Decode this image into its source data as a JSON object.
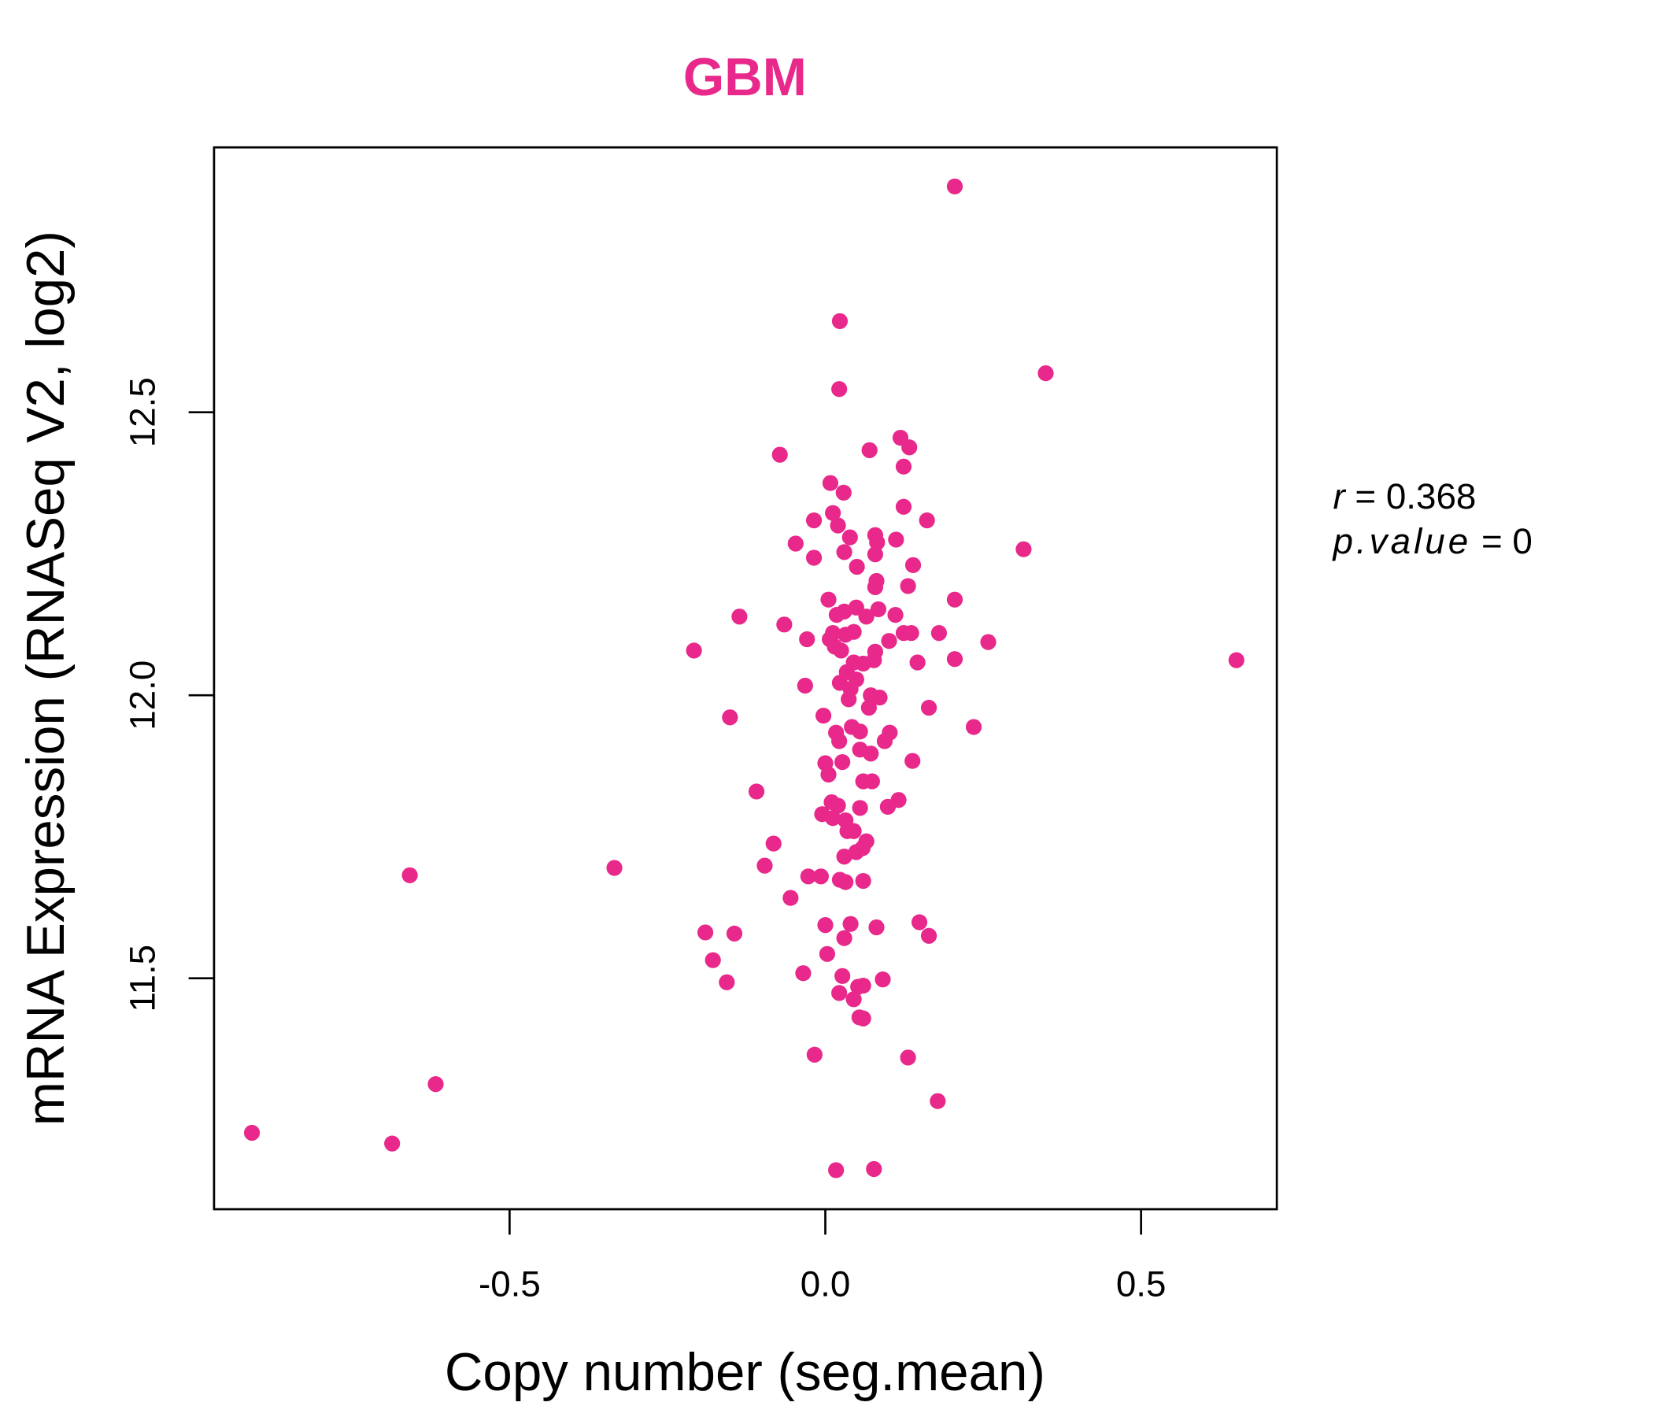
{
  "chart_data": {
    "type": "scatter",
    "title": "GBM",
    "xlabel": "Copy number (seg.mean)",
    "ylabel": "mRNA Expression (RNASeq V2, log2)",
    "xlim": [
      -0.968,
      0.715
    ],
    "ylim": [
      11.092,
      12.968
    ],
    "xticks": [
      -0.5,
      0.0,
      0.5
    ],
    "xtick_labels": [
      "-0.5",
      "0.0",
      "0.5"
    ],
    "yticks": [
      11.5,
      12.0,
      12.5
    ],
    "ytick_labels": [
      "11.5",
      "12.0",
      "12.5"
    ],
    "grid": false,
    "point_color": "#E8288A",
    "title_color": "#E8288A",
    "annotation": {
      "r_label": "r",
      "r_value": "0.368",
      "p_label": "p.value",
      "p_value": "0"
    },
    "points": [
      [
        0.205,
        12.899
      ],
      [
        0.023,
        12.661
      ],
      [
        0.349,
        12.569
      ],
      [
        0.022,
        12.541
      ],
      [
        0.119,
        12.455
      ],
      [
        0.133,
        12.438
      ],
      [
        -0.072,
        12.425
      ],
      [
        0.07,
        12.433
      ],
      [
        0.124,
        12.404
      ],
      [
        0.008,
        12.375
      ],
      [
        0.029,
        12.358
      ],
      [
        0.124,
        12.333
      ],
      [
        0.012,
        12.322
      ],
      [
        -0.018,
        12.309
      ],
      [
        0.161,
        12.309
      ],
      [
        0.02,
        12.3
      ],
      [
        0.079,
        12.283
      ],
      [
        0.039,
        12.279
      ],
      [
        0.082,
        12.27
      ],
      [
        -0.047,
        12.268
      ],
      [
        0.112,
        12.275
      ],
      [
        0.314,
        12.258
      ],
      [
        0.03,
        12.253
      ],
      [
        0.079,
        12.249
      ],
      [
        -0.018,
        12.243
      ],
      [
        0.139,
        12.23
      ],
      [
        0.05,
        12.227
      ],
      [
        0.081,
        12.202
      ],
      [
        0.079,
        12.191
      ],
      [
        0.131,
        12.193
      ],
      [
        0.005,
        12.169
      ],
      [
        0.205,
        12.169
      ],
      [
        0.03,
        12.148
      ],
      [
        0.049,
        12.155
      ],
      [
        0.084,
        12.152
      ],
      [
        0.018,
        12.142
      ],
      [
        0.065,
        12.139
      ],
      [
        0.111,
        12.142
      ],
      [
        -0.136,
        12.139
      ],
      [
        -0.065,
        12.125
      ],
      [
        0.045,
        12.112
      ],
      [
        0.012,
        12.11
      ],
      [
        0.124,
        12.11
      ],
      [
        0.136,
        12.11
      ],
      [
        0.18,
        12.11
      ],
      [
        0.007,
        12.099
      ],
      [
        -0.029,
        12.099
      ],
      [
        0.032,
        12.107
      ],
      [
        0.101,
        12.096
      ],
      [
        0.258,
        12.094
      ],
      [
        0.015,
        12.086
      ],
      [
        0.025,
        12.079
      ],
      [
        -0.208,
        12.079
      ],
      [
        0.079,
        12.077
      ],
      [
        0.077,
        12.062
      ],
      [
        0.205,
        12.064
      ],
      [
        0.651,
        12.062
      ],
      [
        0.146,
        12.058
      ],
      [
        0.045,
        12.058
      ],
      [
        0.06,
        12.056
      ],
      [
        0.034,
        12.041
      ],
      [
        0.023,
        12.022
      ],
      [
        -0.032,
        12.017
      ],
      [
        0.049,
        12.028
      ],
      [
        0.04,
        12.011
      ],
      [
        0.037,
        11.993
      ],
      [
        0.072,
        12.0
      ],
      [
        0.086,
        11.996
      ],
      [
        0.069,
        11.978
      ],
      [
        0.164,
        11.978
      ],
      [
        -0.151,
        11.961
      ],
      [
        -0.003,
        11.964
      ],
      [
        0.042,
        11.944
      ],
      [
        0.017,
        11.934
      ],
      [
        0.055,
        11.936
      ],
      [
        0.235,
        11.944
      ],
      [
        0.102,
        11.934
      ],
      [
        0.022,
        11.919
      ],
      [
        0.094,
        11.919
      ],
      [
        0.055,
        11.904
      ],
      [
        0.072,
        11.897
      ],
      [
        0.027,
        11.882
      ],
      [
        0.138,
        11.884
      ],
      [
        0.0,
        11.88
      ],
      [
        0.005,
        11.86
      ],
      [
        0.06,
        11.848
      ],
      [
        0.074,
        11.848
      ],
      [
        -0.109,
        11.83
      ],
      [
        0.116,
        11.815
      ],
      [
        0.099,
        11.803
      ],
      [
        0.01,
        11.811
      ],
      [
        0.02,
        11.805
      ],
      [
        0.055,
        11.801
      ],
      [
        -0.005,
        11.79
      ],
      [
        0.012,
        11.783
      ],
      [
        0.032,
        11.779
      ],
      [
        0.035,
        11.76
      ],
      [
        0.045,
        11.76
      ],
      [
        -0.082,
        11.738
      ],
      [
        0.065,
        11.742
      ],
      [
        0.059,
        11.73
      ],
      [
        0.049,
        11.723
      ],
      [
        0.03,
        11.715
      ],
      [
        -0.334,
        11.695
      ],
      [
        -0.096,
        11.699
      ],
      [
        -0.658,
        11.682
      ],
      [
        -0.027,
        11.68
      ],
      [
        -0.007,
        11.68
      ],
      [
        0.023,
        11.674
      ],
      [
        0.032,
        11.67
      ],
      [
        0.06,
        11.672
      ],
      [
        -0.055,
        11.642
      ],
      [
        0.149,
        11.599
      ],
      [
        0.0,
        11.594
      ],
      [
        0.04,
        11.596
      ],
      [
        0.081,
        11.59
      ],
      [
        -0.19,
        11.581
      ],
      [
        -0.144,
        11.579
      ],
      [
        0.164,
        11.575
      ],
      [
        0.03,
        11.571
      ],
      [
        0.003,
        11.543
      ],
      [
        -0.178,
        11.532
      ],
      [
        -0.035,
        11.509
      ],
      [
        0.027,
        11.504
      ],
      [
        0.091,
        11.498
      ],
      [
        -0.156,
        11.493
      ],
      [
        0.06,
        11.487
      ],
      [
        0.052,
        11.485
      ],
      [
        0.022,
        11.474
      ],
      [
        0.045,
        11.463
      ],
      [
        0.06,
        11.429
      ],
      [
        0.054,
        11.431
      ],
      [
        -0.017,
        11.365
      ],
      [
        0.131,
        11.36
      ],
      [
        -0.617,
        11.313
      ],
      [
        0.178,
        11.283
      ],
      [
        -0.908,
        11.227
      ],
      [
        -0.686,
        11.208
      ],
      [
        0.017,
        11.161
      ],
      [
        0.077,
        11.163
      ]
    ]
  }
}
